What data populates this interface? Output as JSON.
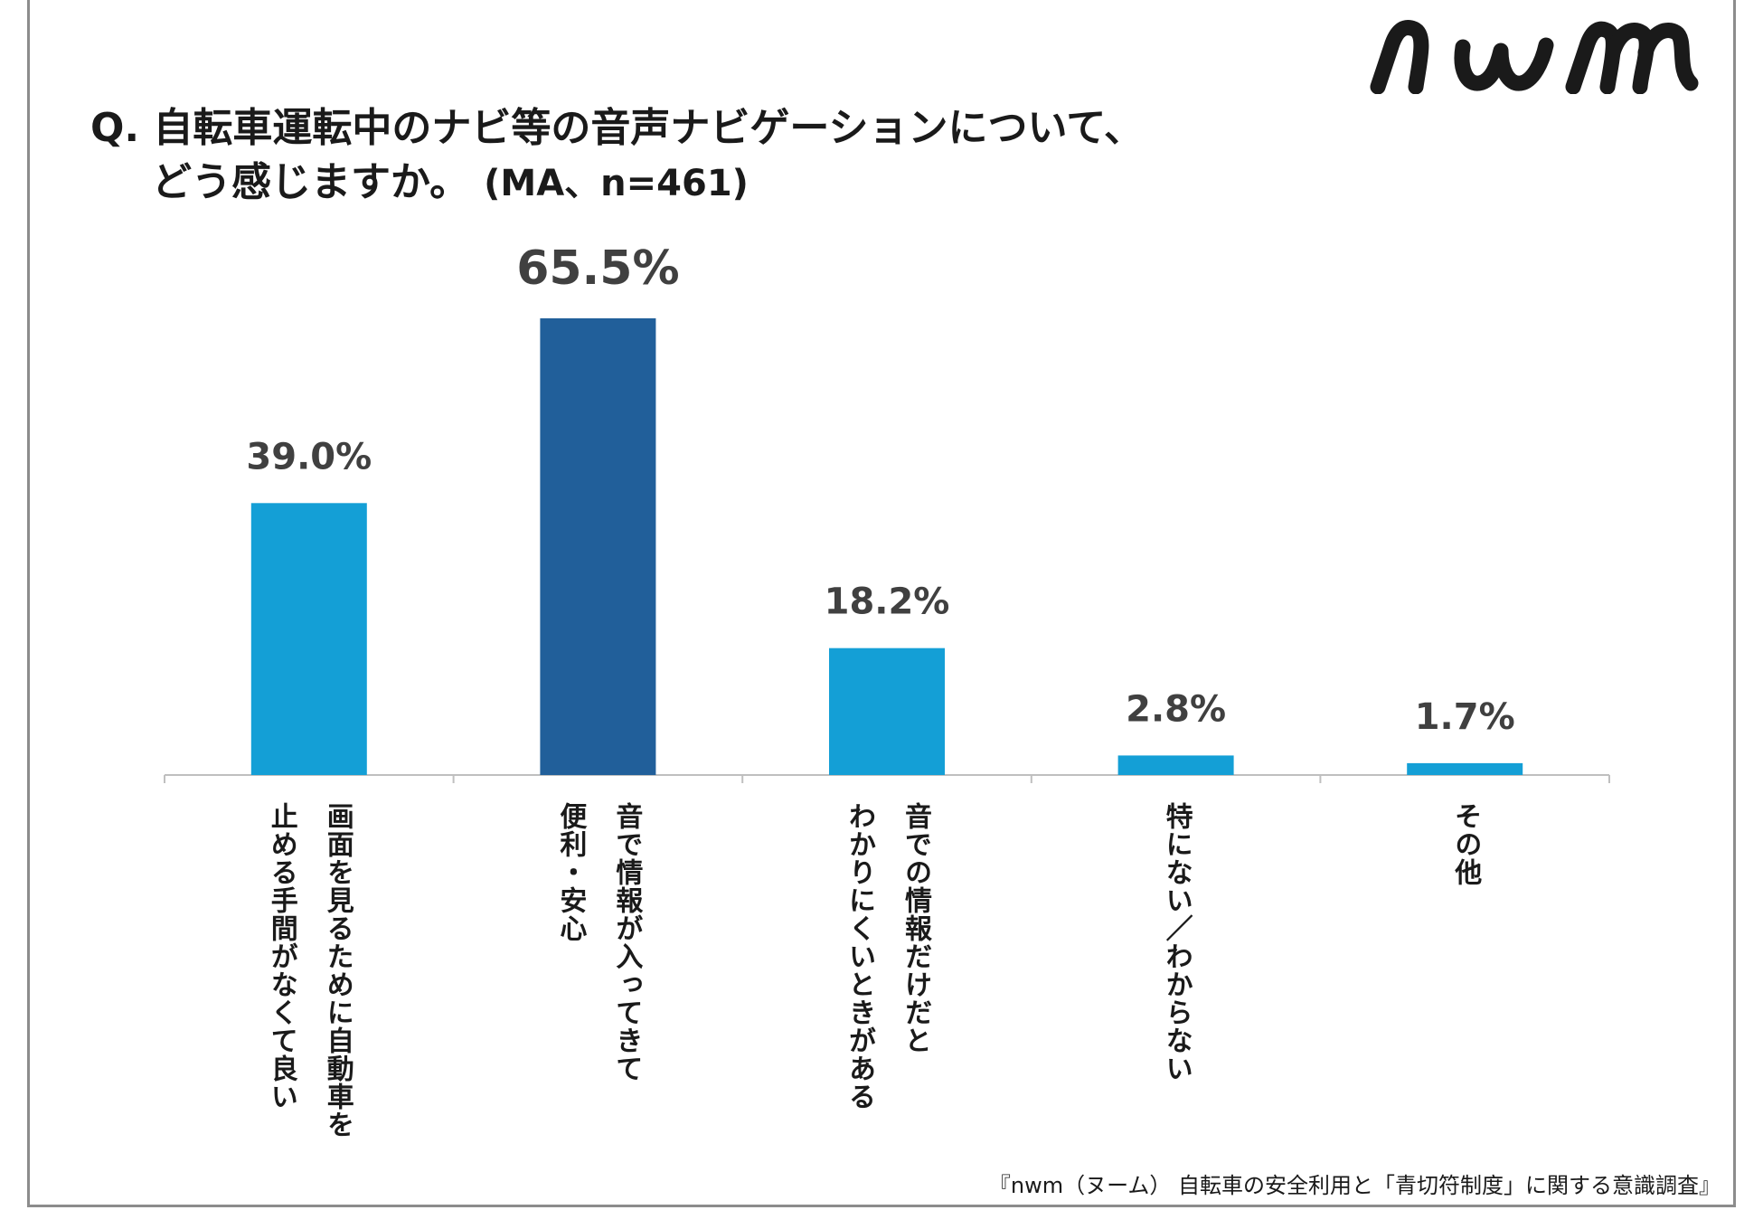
{
  "title": {
    "line1": "Q. 自転車運転中のナビ等の音声ナビゲーションについて、",
    "line2": "どう感じますか。",
    "note": "(MA、n=461)"
  },
  "brand": "nwm",
  "source": "『nwm（ヌーム） 自転車の安全利用と「青切符制度」に関する意識調査』",
  "colors": {
    "bar": "#149fd6",
    "highlight": "#215f9a",
    "text": "#404040",
    "axis": "#bfbfbf"
  },
  "chart_data": {
    "type": "bar",
    "title": "Q. 自転車運転中のナビ等の音声ナビゲーションについて、どう感じますか。 (MA、n=461)",
    "categories": [
      "画面を見るために自動車を\n止める手間がなくて良い",
      "音で情報が入ってきて\n便利・安心",
      "音での情報だけだと\nわかりにくいときがある",
      "特にない／わからない",
      "その他"
    ],
    "values": [
      39.0,
      65.5,
      18.2,
      2.8,
      1.7
    ],
    "value_labels": [
      "39.0%",
      "65.5%",
      "18.2%",
      "2.8%",
      "1.7%"
    ],
    "highlight_index": 1,
    "ylim": [
      0,
      70
    ],
    "xlabel": "",
    "ylabel": "",
    "grid": false,
    "legend": "none"
  }
}
